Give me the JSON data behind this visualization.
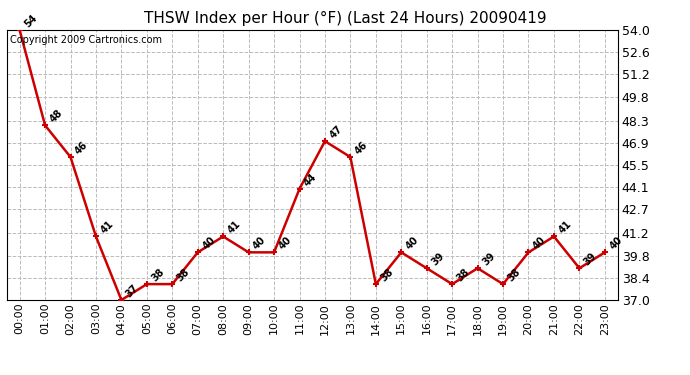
{
  "title": "THSW Index per Hour (°F) (Last 24 Hours) 20090419",
  "copyright": "Copyright 2009 Cartronics.com",
  "hours": [
    0,
    1,
    2,
    3,
    4,
    5,
    6,
    7,
    8,
    9,
    10,
    11,
    12,
    13,
    14,
    15,
    16,
    17,
    18,
    19,
    20,
    21,
    22,
    23
  ],
  "x_labels": [
    "00:00",
    "01:00",
    "02:00",
    "03:00",
    "04:00",
    "05:00",
    "06:00",
    "07:00",
    "08:00",
    "09:00",
    "10:00",
    "11:00",
    "12:00",
    "13:00",
    "14:00",
    "15:00",
    "16:00",
    "17:00",
    "18:00",
    "19:00",
    "20:00",
    "21:00",
    "22:00",
    "23:00"
  ],
  "values": [
    54,
    48,
    46,
    41,
    37,
    38,
    38,
    40,
    41,
    40,
    40,
    44,
    47,
    46,
    38,
    40,
    39,
    38,
    39,
    38,
    40,
    41,
    39,
    40
  ],
  "ylim": [
    37.0,
    54.0
  ],
  "yticks": [
    37.0,
    38.4,
    39.8,
    41.2,
    42.7,
    44.1,
    45.5,
    46.9,
    48.3,
    49.8,
    51.2,
    52.6,
    54.0
  ],
  "line_color": "#cc0000",
  "marker_color": "#cc0000",
  "bg_color": "#ffffff",
  "plot_bg_color": "#ffffff",
  "grid_color": "#bbbbbb",
  "title_fontsize": 11,
  "copyright_fontsize": 7,
  "label_fontsize": 8,
  "annotation_fontsize": 7
}
